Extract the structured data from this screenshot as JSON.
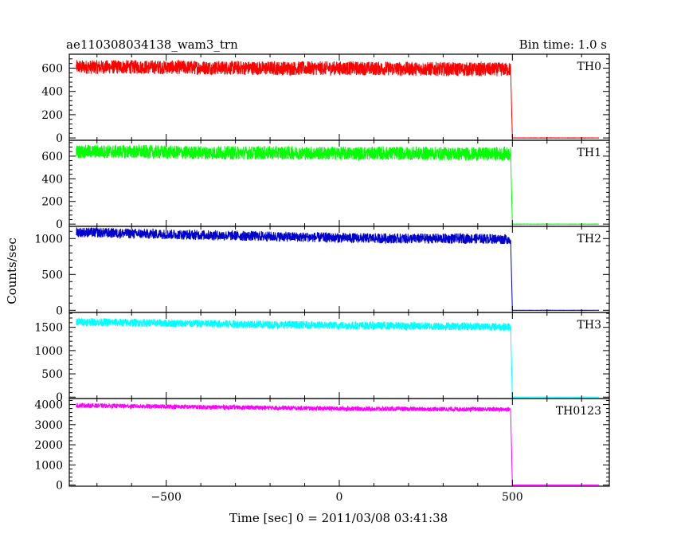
{
  "header": {
    "left_title": "ae110308034138_wam3_trn",
    "right_title": "Bin time: 1.0 s"
  },
  "axes": {
    "xlabel": "Time [sec] 0 = 2011/03/08 03:41:38",
    "ylabel": "Counts/sec"
  },
  "chart_data": {
    "type": "line",
    "title": "ae110308034138_wam3_trn",
    "xlabel": "Time [sec] 0 = 2011/03/08 03:41:38",
    "ylabel": "Counts/sec",
    "xlim": [
      -780,
      780
    ],
    "xticks": [
      -500,
      0,
      500
    ],
    "grid": false,
    "legend": "per-panel label, top-right",
    "panels": [
      {
        "name": "TH0",
        "color": "#ff0000",
        "ylim": [
          -20,
          720
        ],
        "yticks": [
          0,
          200,
          400,
          600
        ],
        "x": [
          -760,
          -600,
          -400,
          -200,
          0,
          200,
          400,
          495,
          500,
          505,
          750
        ],
        "y": [
          610,
          610,
          605,
          600,
          600,
          595,
          590,
          590,
          0,
          0,
          0
        ],
        "noise": 60
      },
      {
        "name": "TH1",
        "color": "#00ff00",
        "ylim": [
          -20,
          740
        ],
        "yticks": [
          0,
          200,
          400,
          600
        ],
        "x": [
          -760,
          -600,
          -400,
          -200,
          0,
          200,
          400,
          495,
          500,
          505,
          750
        ],
        "y": [
          640,
          640,
          630,
          630,
          625,
          625,
          620,
          620,
          0,
          0,
          0
        ],
        "noise": 60
      },
      {
        "name": "TH2",
        "color": "#0000cc",
        "ylim": [
          -30,
          1170
        ],
        "yticks": [
          0,
          500,
          1000
        ],
        "x": [
          -760,
          -600,
          -400,
          -200,
          0,
          200,
          400,
          495,
          500,
          505,
          750
        ],
        "y": [
          1090,
          1070,
          1050,
          1030,
          1010,
          1000,
          1000,
          990,
          0,
          0,
          0
        ],
        "noise": 70
      },
      {
        "name": "TH3",
        "color": "#00ffff",
        "ylim": [
          -30,
          1820
        ],
        "yticks": [
          0,
          500,
          1000,
          1500
        ],
        "x": [
          -760,
          -600,
          -400,
          -200,
          0,
          200,
          400,
          495,
          500,
          505,
          750
        ],
        "y": [
          1620,
          1600,
          1580,
          1560,
          1540,
          1530,
          1520,
          1510,
          0,
          0,
          0
        ],
        "noise": 85
      },
      {
        "name": "TH0123",
        "color": "#ff00ff",
        "ylim": [
          -60,
          4300
        ],
        "yticks": [
          0,
          1000,
          2000,
          3000,
          4000
        ],
        "x": [
          -760,
          -600,
          -400,
          -200,
          0,
          200,
          400,
          495,
          500,
          505,
          750
        ],
        "y": [
          3960,
          3920,
          3880,
          3840,
          3800,
          3780,
          3770,
          3760,
          0,
          0,
          0
        ],
        "noise": 110
      }
    ]
  }
}
